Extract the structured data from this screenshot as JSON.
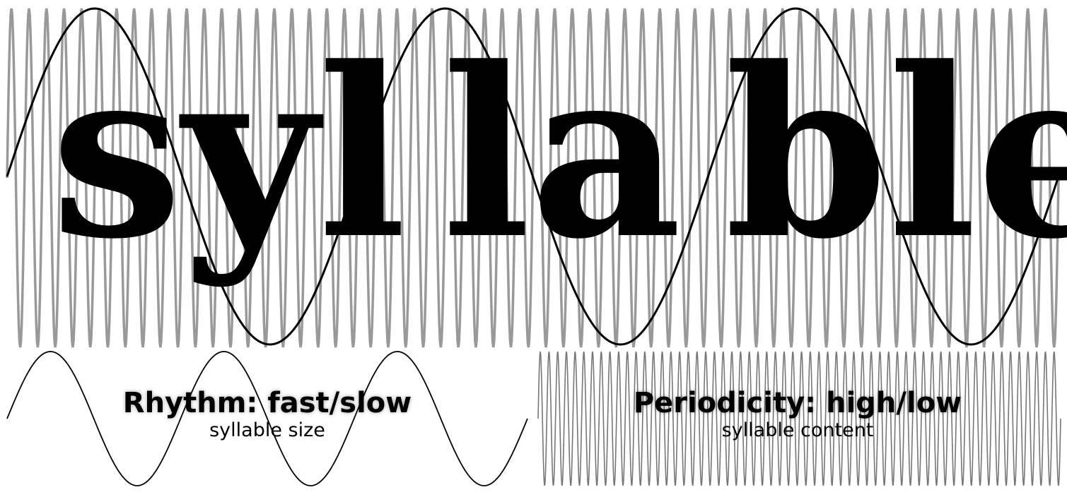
{
  "main": {
    "syllables": [
      "syl",
      "la",
      "ble"
    ]
  },
  "panels": {
    "rhythm": {
      "title": "Rhythm: fast/slow",
      "subtitle": "syllable size"
    },
    "periodicity": {
      "title": "Periodicity: high/low",
      "subtitle": "syllable content"
    }
  },
  "waves": {
    "slow": {
      "cycles": 3,
      "color": "#000000"
    },
    "fast": {
      "cycles": 60,
      "color": "#999999"
    }
  }
}
